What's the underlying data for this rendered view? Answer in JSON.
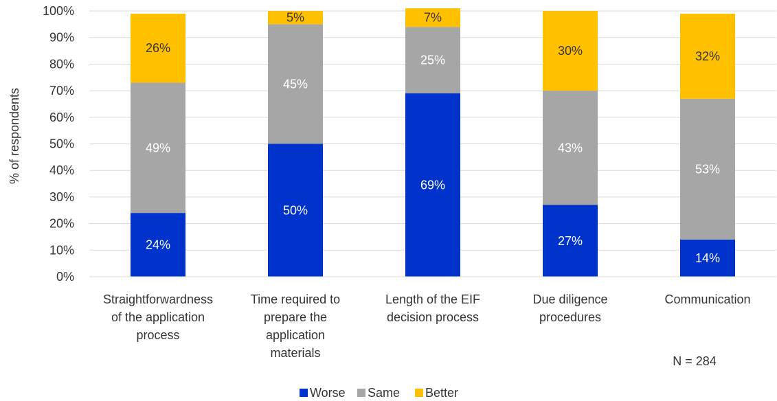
{
  "chart_data": {
    "type": "bar",
    "stacked": true,
    "ylabel": "% of respondents",
    "ylim": [
      0,
      100
    ],
    "ytick_format": "percent",
    "yticks": [
      "0%",
      "10%",
      "20%",
      "30%",
      "40%",
      "50%",
      "60%",
      "70%",
      "80%",
      "90%",
      "100%"
    ],
    "grid": true,
    "legend_position": "bottom",
    "categories": [
      [
        "Straightforwardness",
        "of the application",
        "process"
      ],
      [
        "Time required to",
        "prepare the",
        "application",
        "materials"
      ],
      [
        "Length of the EIF",
        "decision process"
      ],
      [
        "Due diligence",
        "procedures"
      ],
      [
        "Communication"
      ]
    ],
    "series": [
      {
        "name": "Worse",
        "color": "#0033cc",
        "label_color": "#ffffff",
        "values": [
          24,
          50,
          69,
          27,
          14
        ],
        "labels": [
          "24%",
          "50%",
          "69%",
          "27%",
          "14%"
        ]
      },
      {
        "name": "Same",
        "color": "#a6a6a6",
        "label_color": "#ffffff",
        "values": [
          49,
          45,
          25,
          43,
          53
        ],
        "labels": [
          "49%",
          "45%",
          "25%",
          "43%",
          "53%"
        ]
      },
      {
        "name": "Better",
        "color": "#ffc000",
        "label_color": "#333333",
        "values": [
          26,
          5,
          7,
          30,
          32
        ],
        "labels": [
          "26%",
          "5%",
          "7%",
          "30%",
          "32%"
        ]
      }
    ],
    "annotation": "N = 284"
  }
}
